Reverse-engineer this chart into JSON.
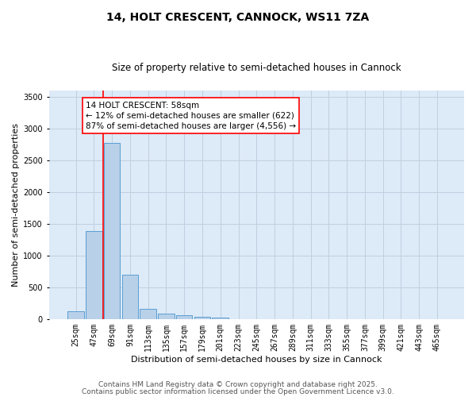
{
  "title1": "14, HOLT CRESCENT, CANNOCK, WS11 7ZA",
  "title2": "Size of property relative to semi-detached houses in Cannock",
  "xlabel": "Distribution of semi-detached houses by size in Cannock",
  "ylabel": "Number of semi-detached properties",
  "categories": [
    "25sqm",
    "47sqm",
    "69sqm",
    "91sqm",
    "113sqm",
    "135sqm",
    "157sqm",
    "179sqm",
    "201sqm",
    "223sqm",
    "245sqm",
    "267sqm",
    "289sqm",
    "311sqm",
    "333sqm",
    "355sqm",
    "377sqm",
    "399sqm",
    "421sqm",
    "443sqm",
    "465sqm"
  ],
  "values": [
    120,
    1380,
    2780,
    700,
    160,
    90,
    55,
    30,
    25,
    0,
    0,
    0,
    0,
    0,
    0,
    0,
    0,
    0,
    0,
    0,
    0
  ],
  "bar_color": "#b8d0e8",
  "bar_edge_color": "#5a9fd4",
  "grid_color": "#c0d0e0",
  "bg_color": "#ddeaf7",
  "red_line_x": 1.5,
  "annotation_box_text": "14 HOLT CRESCENT: 58sqm\n← 12% of semi-detached houses are smaller (622)\n87% of semi-detached houses are larger (4,556) →",
  "ylim": [
    0,
    3600
  ],
  "yticks": [
    0,
    500,
    1000,
    1500,
    2000,
    2500,
    3000,
    3500
  ],
  "footer1": "Contains HM Land Registry data © Crown copyright and database right 2025.",
  "footer2": "Contains public sector information licensed under the Open Government Licence v3.0.",
  "title1_fontsize": 10,
  "title2_fontsize": 8.5,
  "tick_fontsize": 7,
  "ylabel_fontsize": 8,
  "xlabel_fontsize": 8,
  "ann_fontsize": 7.5,
  "footer_fontsize": 6.5
}
